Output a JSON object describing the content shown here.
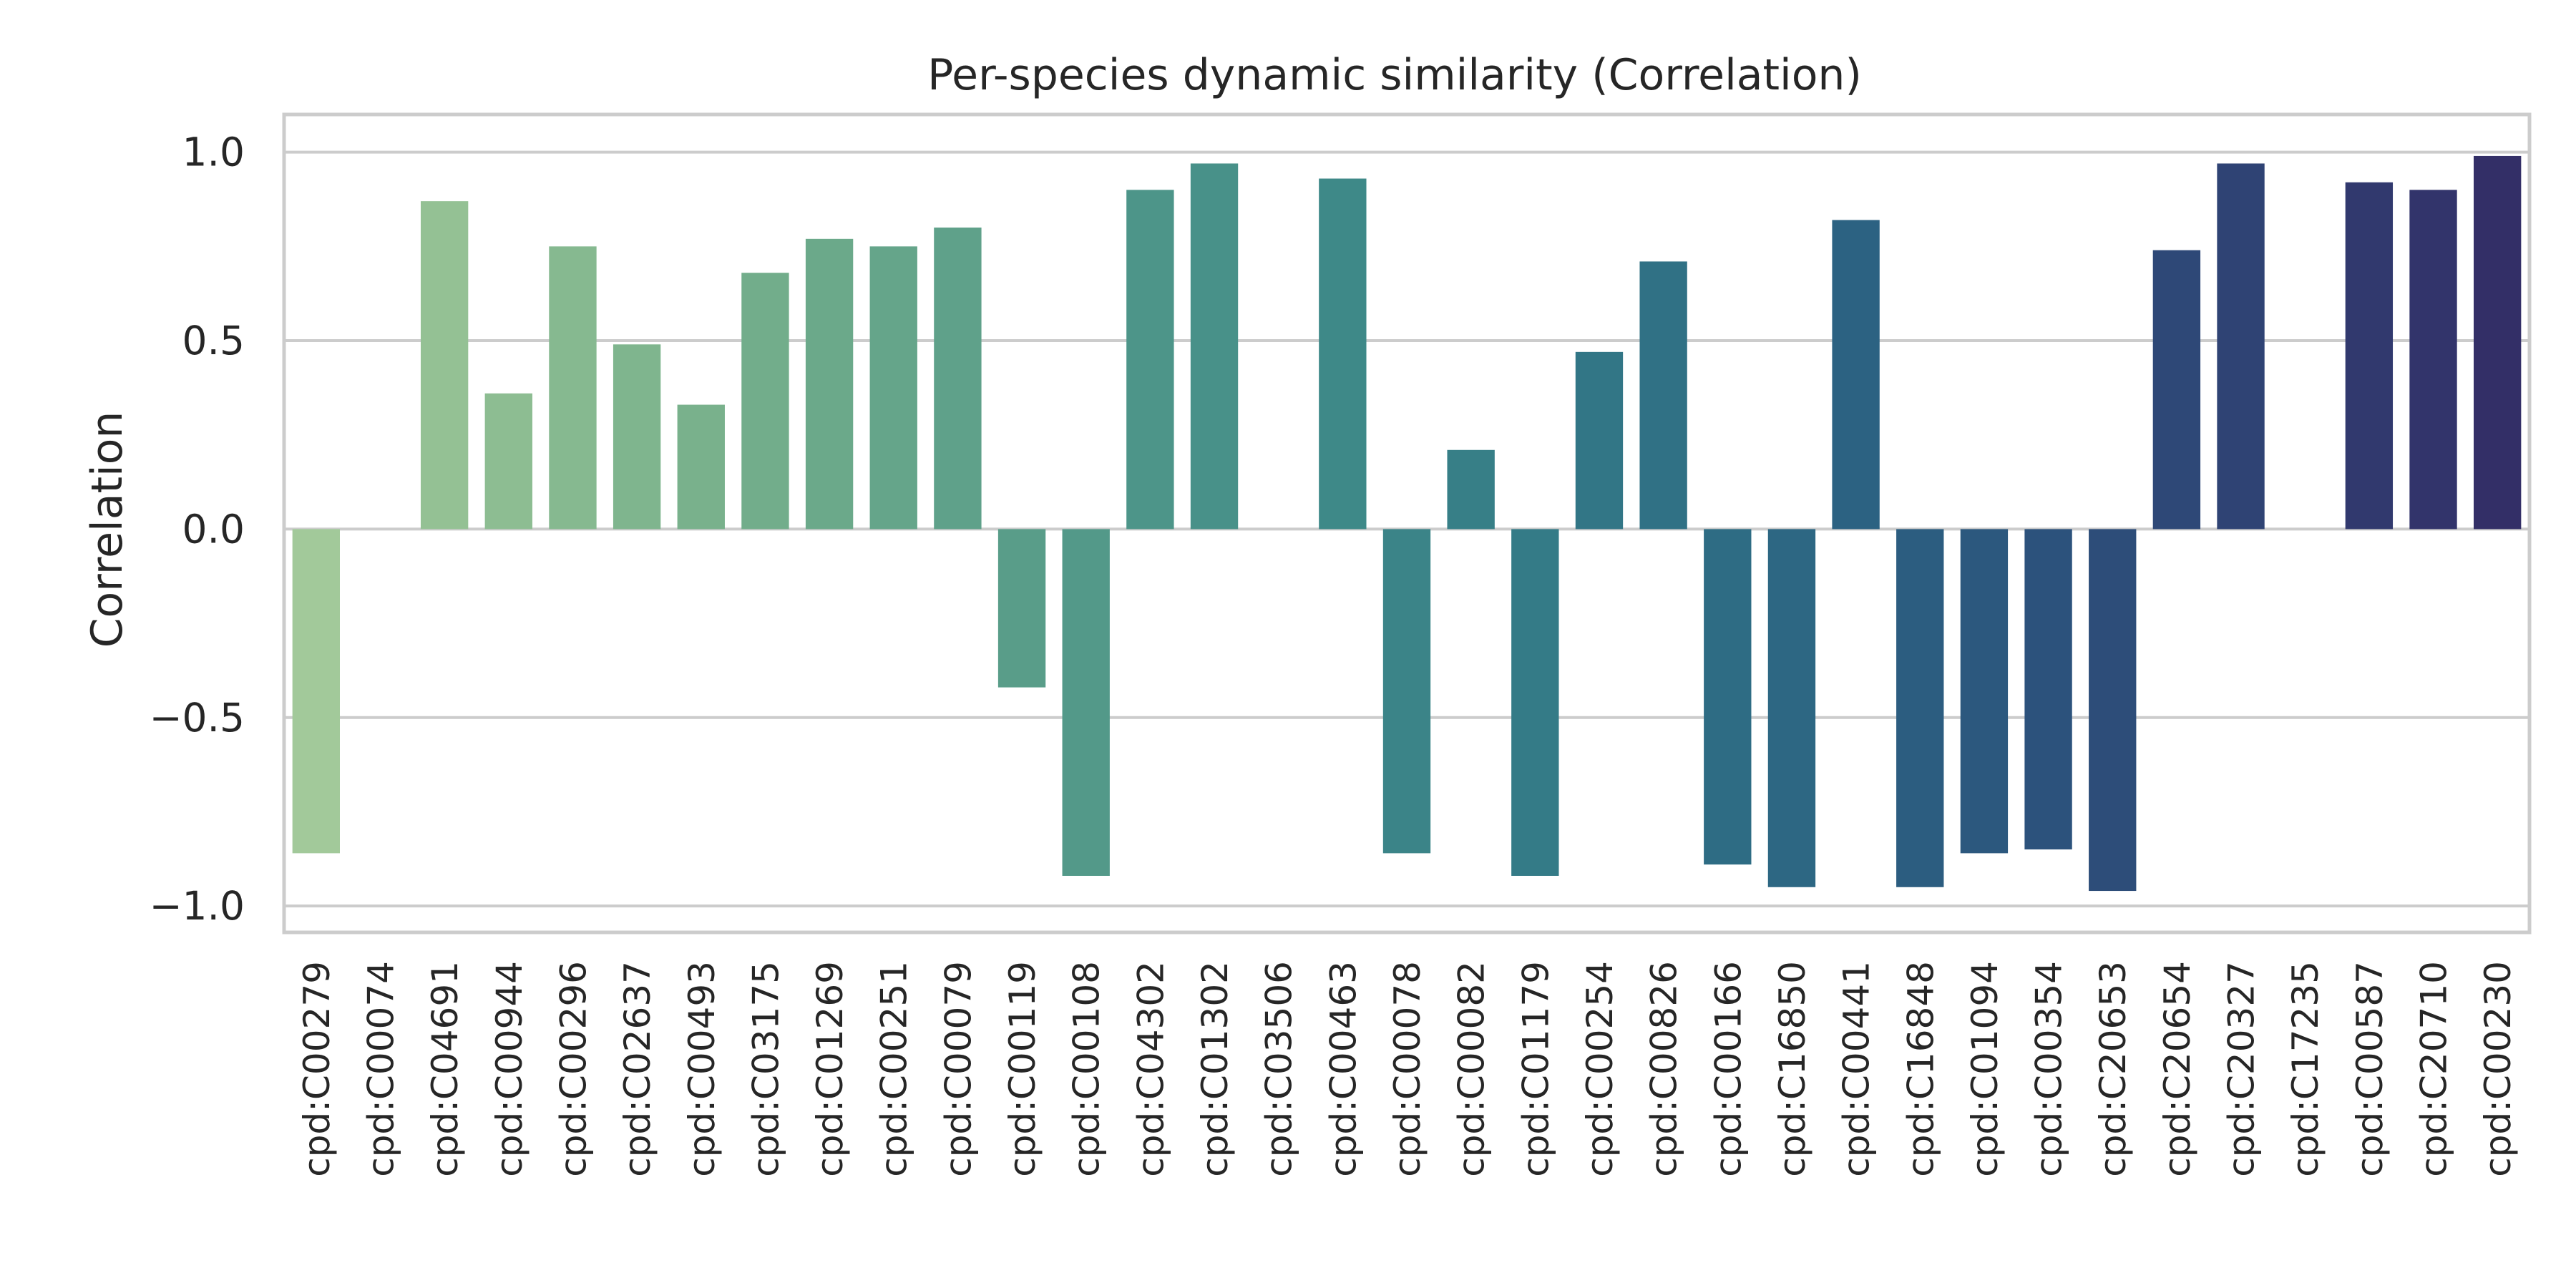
{
  "chart_data": {
    "type": "bar",
    "title": "Per-species dynamic similarity (Correlation)",
    "xlabel": "",
    "ylabel": "Correlation",
    "ylim": [
      -1.07,
      1.1
    ],
    "yticks": [
      1.0,
      0.5,
      0.0,
      -0.5,
      -1.0
    ],
    "ytick_labels": [
      "1.0",
      "0.5",
      "0.0",
      "−0.5",
      "−1.0"
    ],
    "grid": true,
    "legend": "none",
    "palette": "crest",
    "categories": [
      "cpd:C00279",
      "cpd:C00074",
      "cpd:C04691",
      "cpd:C00944",
      "cpd:C00296",
      "cpd:C02637",
      "cpd:C00493",
      "cpd:C03175",
      "cpd:C01269",
      "cpd:C00251",
      "cpd:C00079",
      "cpd:C00119",
      "cpd:C00108",
      "cpd:C04302",
      "cpd:C01302",
      "cpd:C03506",
      "cpd:C00463",
      "cpd:C00078",
      "cpd:C00082",
      "cpd:C01179",
      "cpd:C00254",
      "cpd:C00826",
      "cpd:C00166",
      "cpd:C16850",
      "cpd:C00441",
      "cpd:C16848",
      "cpd:C01094",
      "cpd:C00354",
      "cpd:C20653",
      "cpd:C20654",
      "cpd:C20327",
      "cpd:C17235",
      "cpd:C00587",
      "cpd:C20710",
      "cpd:C00230"
    ],
    "values": [
      -0.86,
      0.0,
      0.87,
      0.36,
      0.75,
      0.49,
      0.33,
      0.68,
      0.77,
      0.75,
      0.8,
      -0.42,
      -0.92,
      0.9,
      0.97,
      0.0,
      0.93,
      -0.86,
      0.21,
      -0.92,
      0.47,
      0.71,
      -0.89,
      -0.95,
      0.82,
      -0.95,
      -0.86,
      -0.85,
      -0.96,
      0.74,
      0.97,
      0.0,
      0.92,
      0.9,
      0.99
    ],
    "colors": [
      "#a2c99a",
      "#9bc597",
      "#94c194",
      "#8dbd92",
      "#86b990",
      "#7fb58e",
      "#79b18c",
      "#72ad8b",
      "#6ba98a",
      "#65a58a",
      "#5fa18a",
      "#599d89",
      "#539989",
      "#4d9589",
      "#489189",
      "#438d88",
      "#3e8988",
      "#3b8488",
      "#377f87",
      "#347b87",
      "#327686",
      "#307185",
      "#2e6c84",
      "#2d6783",
      "#2c6282",
      "#2c5d80",
      "#2c587e",
      "#2c527c",
      "#2d4d79",
      "#2e4877",
      "#2f4374",
      "#303e71",
      "#31396e",
      "#32346b",
      "#332f67"
    ]
  }
}
